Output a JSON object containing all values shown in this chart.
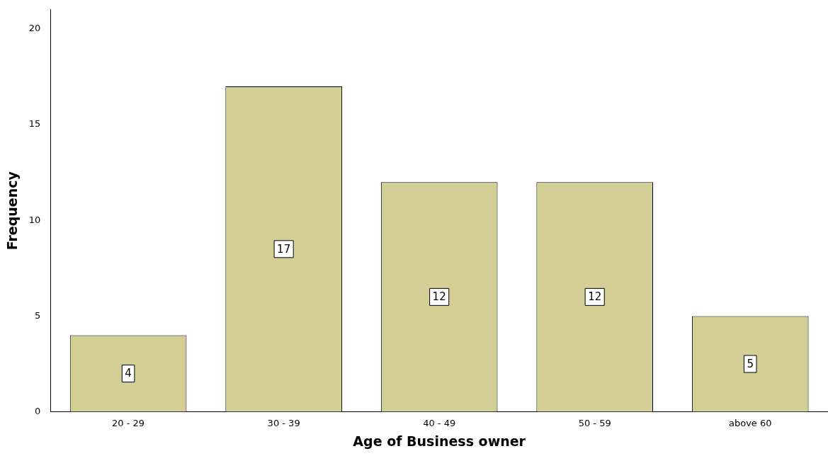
{
  "chart_data": {
    "type": "bar",
    "xlabel": "Age of Business owner",
    "ylabel": "Frequency",
    "categories": [
      "20 - 29",
      "30 - 39",
      "40 - 49",
      "50 - 59",
      "above 60"
    ],
    "values": [
      4,
      17,
      12,
      12,
      5
    ],
    "color": "#d3cd96",
    "ylim": [
      0,
      21
    ],
    "yticks": [
      0,
      5,
      10,
      15,
      20
    ],
    "grid": false,
    "legend": false,
    "data_labels": true
  }
}
